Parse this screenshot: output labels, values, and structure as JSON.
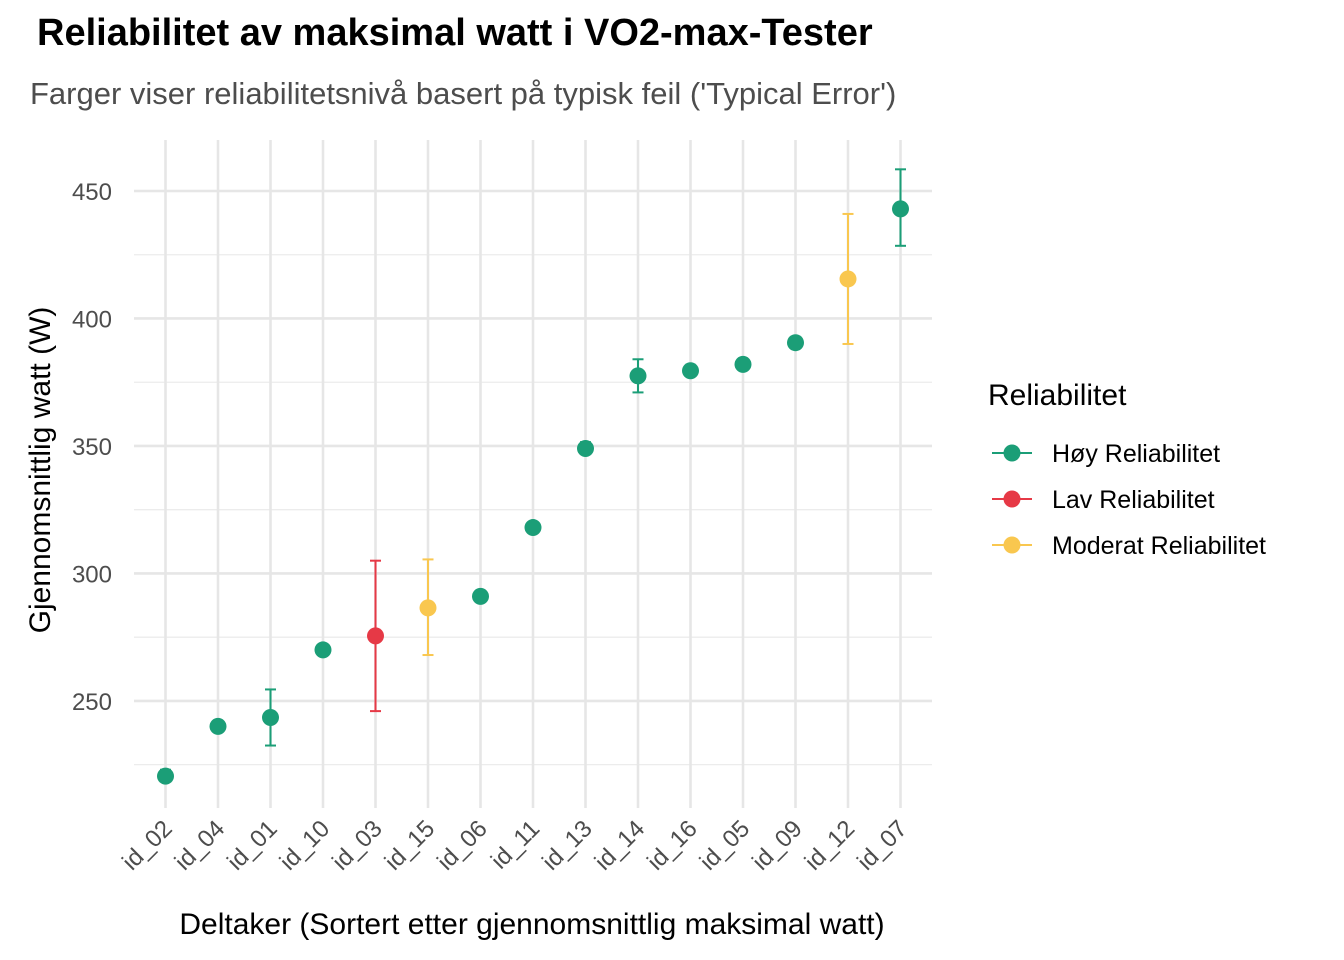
{
  "chart_data": {
    "type": "scatter",
    "title": "Reliabilitet av maksimal watt i VO2-max-Tester",
    "subtitle": "Farger viser reliabilitetsnivå basert på typisk feil ('Typical Error')",
    "xlabel": "Deltaker (Sortert etter gjennomsnittlig maksimal watt)",
    "ylabel": "Gjennomsnittlig watt (W)",
    "ylim": [
      208,
      470
    ],
    "yticks": [
      250,
      300,
      350,
      400,
      450
    ],
    "grid": true,
    "legend": {
      "title": "Reliabilitet",
      "placement": "right",
      "entries": [
        {
          "label": "Høy Reliabilitet",
          "color": "#1b9e77"
        },
        {
          "label": "Lav Reliabilitet",
          "color": "#e63946"
        },
        {
          "label": "Moderat Reliabilitet",
          "color": "#f9c74f"
        }
      ]
    },
    "categories": [
      "id_02",
      "id_04",
      "id_01",
      "id_10",
      "id_03",
      "id_15",
      "id_06",
      "id_11",
      "id_13",
      "id_14",
      "id_16",
      "id_05",
      "id_09",
      "id_12",
      "id_07"
    ],
    "points": [
      {
        "x": "id_02",
        "y": 220.5,
        "lo": 218.5,
        "hi": 223,
        "group": "Høy Reliabilitet"
      },
      {
        "x": "id_04",
        "y": 240,
        "lo": 240,
        "hi": 240,
        "group": "Høy Reliabilitet"
      },
      {
        "x": "id_01",
        "y": 243.5,
        "lo": 232.5,
        "hi": 254.5,
        "group": "Høy Reliabilitet"
      },
      {
        "x": "id_10",
        "y": 270,
        "lo": 270,
        "hi": 270,
        "group": "Høy Reliabilitet"
      },
      {
        "x": "id_03",
        "y": 275.5,
        "lo": 246,
        "hi": 305,
        "group": "Lav Reliabilitet"
      },
      {
        "x": "id_15",
        "y": 286.5,
        "lo": 268,
        "hi": 305.5,
        "group": "Moderat Reliabilitet"
      },
      {
        "x": "id_06",
        "y": 291,
        "lo": 291,
        "hi": 291,
        "group": "Høy Reliabilitet"
      },
      {
        "x": "id_11",
        "y": 318,
        "lo": 318,
        "hi": 318,
        "group": "Høy Reliabilitet"
      },
      {
        "x": "id_13",
        "y": 349,
        "lo": 347,
        "hi": 351.5,
        "group": "Høy Reliabilitet"
      },
      {
        "x": "id_14",
        "y": 377.5,
        "lo": 371,
        "hi": 384,
        "group": "Høy Reliabilitet"
      },
      {
        "x": "id_16",
        "y": 379.5,
        "lo": 379.5,
        "hi": 379.5,
        "group": "Høy Reliabilitet"
      },
      {
        "x": "id_05",
        "y": 382,
        "lo": 382,
        "hi": 382,
        "group": "Høy Reliabilitet"
      },
      {
        "x": "id_09",
        "y": 390.5,
        "lo": 390.5,
        "hi": 390.5,
        "group": "Høy Reliabilitet"
      },
      {
        "x": "id_12",
        "y": 415.5,
        "lo": 390,
        "hi": 441,
        "group": "Moderat Reliabilitet"
      },
      {
        "x": "id_07",
        "y": 443,
        "lo": 428.5,
        "hi": 458.5,
        "group": "Høy Reliabilitet"
      }
    ]
  }
}
